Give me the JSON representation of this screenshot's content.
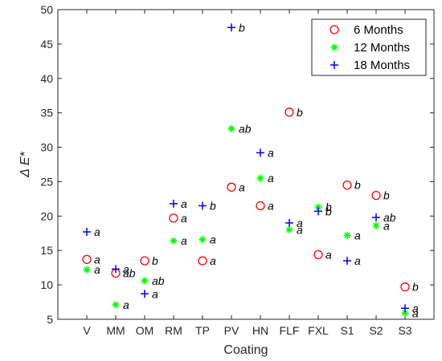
{
  "chart_data": {
    "type": "scatter",
    "xlabel": "Coating",
    "ylabel": "Δ E*",
    "ylim": [
      5,
      50
    ],
    "yticks": [
      5,
      10,
      15,
      20,
      25,
      30,
      35,
      40,
      45,
      50
    ],
    "categories": [
      "V",
      "MM",
      "OM",
      "RM",
      "TP",
      "PV",
      "HN",
      "FLF",
      "FXL",
      "S1",
      "S2",
      "S3"
    ],
    "grid": false,
    "legend_position": "top-right",
    "series": [
      {
        "name": "6 Months",
        "marker": "circle",
        "color": "#ff0000",
        "values": [
          13.7,
          11.7,
          13.5,
          19.7,
          13.5,
          24.2,
          21.5,
          35.1,
          14.4,
          24.5,
          23.0,
          9.7
        ],
        "labels": [
          "a",
          "ab",
          "b",
          "a",
          "a",
          "a",
          "a",
          "b",
          "a",
          "b",
          "b",
          "b"
        ]
      },
      {
        "name": "12 Months",
        "marker": "asterisk",
        "color": "#00ff00",
        "values": [
          12.2,
          7.1,
          10.6,
          16.4,
          16.6,
          32.7,
          25.5,
          18.0,
          21.3,
          17.2,
          18.6,
          5.9
        ],
        "labels": [
          "a",
          "a",
          "ab",
          "a",
          "a",
          "ab",
          "a",
          "a",
          "b",
          "a",
          "a",
          "a"
        ]
      },
      {
        "name": "18 Months",
        "marker": "plus",
        "color": "#0000ff",
        "values": [
          17.7,
          12.3,
          8.7,
          21.8,
          21.5,
          47.4,
          29.2,
          19.0,
          20.7,
          13.5,
          19.8,
          6.6
        ],
        "labels": [
          "a",
          "a",
          "a",
          "a",
          "b",
          "b",
          "a",
          "a",
          "b",
          "a",
          "ab",
          "a"
        ]
      }
    ]
  }
}
